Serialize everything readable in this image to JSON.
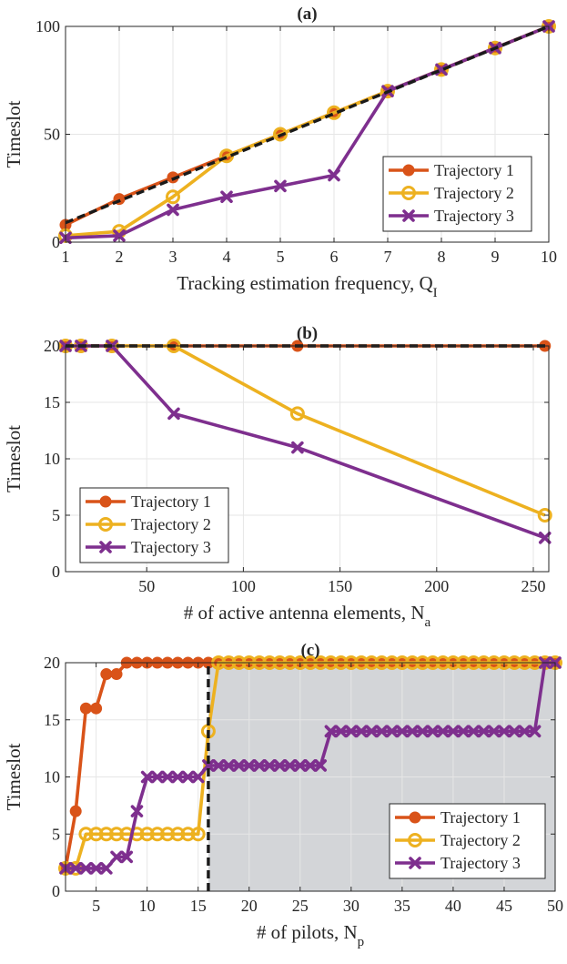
{
  "colors": {
    "t1": "#D95319",
    "t2": "#EDB120",
    "t3": "#7E2F8E",
    "ref": "#1a1a1a",
    "shade": "#d3d5d8",
    "grid": "#e6e6e6"
  },
  "chart_data": [
    {
      "type": "line",
      "title": "(a)",
      "xlabel": "Tracking estimation frequency, Q",
      "xlabel_sub": "I",
      "ylabel": "Timeslot",
      "xlim": [
        1,
        10
      ],
      "ylim": [
        0,
        100
      ],
      "xticks": [
        1,
        2,
        3,
        4,
        5,
        6,
        7,
        8,
        9,
        10
      ],
      "yticks": [
        0,
        50,
        100
      ],
      "legend_loc": "lower-right",
      "series": [
        {
          "name": "Trajectory 1",
          "marker": "circle",
          "x": [
            1,
            2,
            3,
            4,
            5,
            6,
            7,
            8,
            9,
            10
          ],
          "y": [
            8,
            20,
            30,
            40,
            50,
            60,
            70,
            80,
            90,
            100
          ]
        },
        {
          "name": "Trajectory 2",
          "marker": "ring",
          "x": [
            1,
            2,
            3,
            4,
            5,
            6,
            7,
            8,
            9,
            10
          ],
          "y": [
            3,
            5,
            21,
            40,
            50,
            60,
            70,
            80,
            90,
            100
          ]
        },
        {
          "name": "Trajectory 3",
          "marker": "x",
          "x": [
            1,
            2,
            3,
            4,
            5,
            6,
            7,
            8,
            9,
            10
          ],
          "y": [
            2,
            3,
            15,
            21,
            26,
            31,
            70,
            80,
            90,
            100
          ]
        }
      ],
      "reference_lines": [
        {
          "x": [
            1,
            10
          ],
          "y": [
            9,
            100
          ]
        }
      ]
    },
    {
      "type": "line",
      "title": "(b)",
      "xlabel": "# of active antenna elements, N",
      "xlabel_sub": "a",
      "ylabel": "Timeslot",
      "xlim": [
        8,
        258
      ],
      "ylim": [
        0,
        20
      ],
      "xticks": [
        50,
        100,
        150,
        200,
        250
      ],
      "yticks": [
        0,
        5,
        10,
        15,
        20
      ],
      "legend_loc": "lower-left",
      "series": [
        {
          "name": "Trajectory 1",
          "marker": "circle",
          "x": [
            8,
            16,
            32,
            64,
            128,
            256
          ],
          "y": [
            20,
            20,
            20,
            20,
            20,
            20
          ]
        },
        {
          "name": "Trajectory 2",
          "marker": "ring",
          "x": [
            8,
            16,
            32,
            64,
            128,
            256
          ],
          "y": [
            20,
            20,
            20,
            20,
            14,
            5
          ]
        },
        {
          "name": "Trajectory 3",
          "marker": "x",
          "x": [
            8,
            16,
            32,
            64,
            128,
            256
          ],
          "y": [
            20,
            20,
            20,
            14,
            11,
            3
          ]
        }
      ],
      "reference_lines": [
        {
          "x": [
            8,
            258
          ],
          "y": [
            20,
            20
          ]
        }
      ]
    },
    {
      "type": "line",
      "title": "(c)",
      "xlabel": "# of pilots, N",
      "xlabel_sub": "p",
      "ylabel": "Timeslot",
      "xlim": [
        2,
        50
      ],
      "ylim": [
        0,
        20
      ],
      "xticks": [
        5,
        10,
        15,
        20,
        25,
        30,
        35,
        40,
        45,
        50
      ],
      "yticks": [
        0,
        5,
        10,
        15,
        20
      ],
      "legend_loc": "lower-right",
      "shaded_region": {
        "x": [
          16,
          50
        ]
      },
      "series": [
        {
          "name": "Trajectory 1",
          "marker": "circle",
          "x": [
            2,
            3,
            4,
            5,
            6,
            7,
            8,
            9,
            10,
            11,
            12,
            13,
            14,
            15,
            16,
            17,
            18,
            19,
            20,
            21,
            22,
            23,
            24,
            25,
            26,
            27,
            28,
            29,
            30,
            31,
            32,
            33,
            34,
            35,
            36,
            37,
            38,
            39,
            40,
            41,
            42,
            43,
            44,
            45,
            46,
            47,
            48,
            49,
            50
          ],
          "y": [
            2,
            7,
            16,
            16,
            19,
            19,
            20,
            20,
            20,
            20,
            20,
            20,
            20,
            20,
            20,
            20,
            20,
            20,
            20,
            20,
            20,
            20,
            20,
            20,
            20,
            20,
            20,
            20,
            20,
            20,
            20,
            20,
            20,
            20,
            20,
            20,
            20,
            20,
            20,
            20,
            20,
            20,
            20,
            20,
            20,
            20,
            20,
            20,
            20
          ]
        },
        {
          "name": "Trajectory 2",
          "marker": "ring",
          "x": [
            2,
            3,
            4,
            5,
            6,
            7,
            8,
            9,
            10,
            11,
            12,
            13,
            14,
            15,
            16,
            17,
            18,
            19,
            20,
            21,
            22,
            23,
            24,
            25,
            26,
            27,
            28,
            29,
            30,
            31,
            32,
            33,
            34,
            35,
            36,
            37,
            38,
            39,
            40,
            41,
            42,
            43,
            44,
            45,
            46,
            47,
            48,
            49,
            50
          ],
          "y": [
            2,
            2,
            5,
            5,
            5,
            5,
            5,
            5,
            5,
            5,
            5,
            5,
            5,
            5,
            14,
            20,
            20,
            20,
            20,
            20,
            20,
            20,
            20,
            20,
            20,
            20,
            20,
            20,
            20,
            20,
            20,
            20,
            20,
            20,
            20,
            20,
            20,
            20,
            20,
            20,
            20,
            20,
            20,
            20,
            20,
            20,
            20,
            20,
            20
          ]
        },
        {
          "name": "Trajectory 3",
          "marker": "x",
          "x": [
            2,
            3,
            4,
            5,
            6,
            7,
            8,
            9,
            10,
            11,
            12,
            13,
            14,
            15,
            16,
            17,
            18,
            19,
            20,
            21,
            22,
            23,
            24,
            25,
            26,
            27,
            28,
            29,
            30,
            31,
            32,
            33,
            34,
            35,
            36,
            37,
            38,
            39,
            40,
            41,
            42,
            43,
            44,
            45,
            46,
            47,
            48,
            49,
            50
          ],
          "y": [
            2,
            2,
            2,
            2,
            2,
            3,
            3,
            7,
            10,
            10,
            10,
            10,
            10,
            10,
            11,
            11,
            11,
            11,
            11,
            11,
            11,
            11,
            11,
            11,
            11,
            11,
            14,
            14,
            14,
            14,
            14,
            14,
            14,
            14,
            14,
            14,
            14,
            14,
            14,
            14,
            14,
            14,
            14,
            14,
            14,
            14,
            14,
            20,
            20
          ]
        }
      ],
      "reference_lines": [
        {
          "x": [
            16,
            16
          ],
          "y": [
            0,
            20
          ]
        }
      ]
    }
  ]
}
